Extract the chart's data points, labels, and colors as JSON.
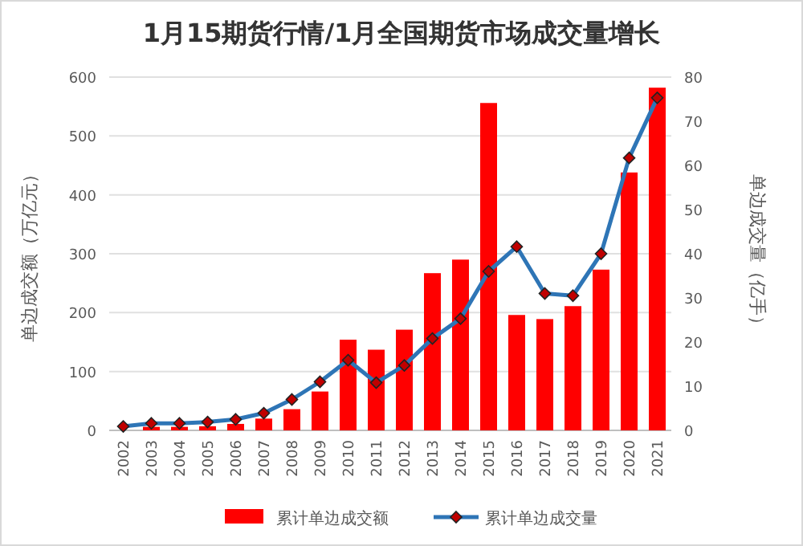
{
  "chart_data": {
    "type": "bar",
    "title": "1月15期货行情/1月全国期货市场成交量增长",
    "categories": [
      "2002",
      "2003",
      "2004",
      "2005",
      "2006",
      "2007",
      "2008",
      "2009",
      "2010",
      "2011",
      "2012",
      "2013",
      "2014",
      "2015",
      "2016",
      "2017",
      "2018",
      "2019",
      "2020",
      "2021"
    ],
    "series": [
      {
        "name": "累计单边成交额",
        "color": "#ff0000",
        "values": [
          null,
          6,
          6,
          7,
          11,
          20,
          36,
          66,
          154,
          137,
          171,
          267,
          290,
          556,
          196,
          189,
          211,
          273,
          438,
          582
        ]
      },
      {
        "name": "累计单边成交量",
        "type": "line",
        "axis": "y2",
        "color": "#2e75b6",
        "marker": "diamond",
        "values": [
          0.9,
          1.6,
          1.6,
          1.9,
          2.5,
          3.9,
          7.0,
          11.0,
          15.9,
          10.8,
          14.7,
          20.8,
          25.3,
          36.0,
          41.6,
          31.0,
          30.5,
          40.0,
          61.7,
          75.3
        ]
      }
    ],
    "ylabel": "单边成交额（万亿元）",
    "y2label": "单边成交量（亿手）",
    "ylim": [
      0,
      600
    ],
    "yticks": [
      0,
      100,
      200,
      300,
      400,
      500,
      600
    ],
    "y2lim": [
      0,
      80
    ],
    "y2ticks": [
      0,
      10,
      20,
      30,
      40,
      50,
      60,
      70,
      80
    ],
    "grid": "y",
    "legend": "bottom"
  }
}
